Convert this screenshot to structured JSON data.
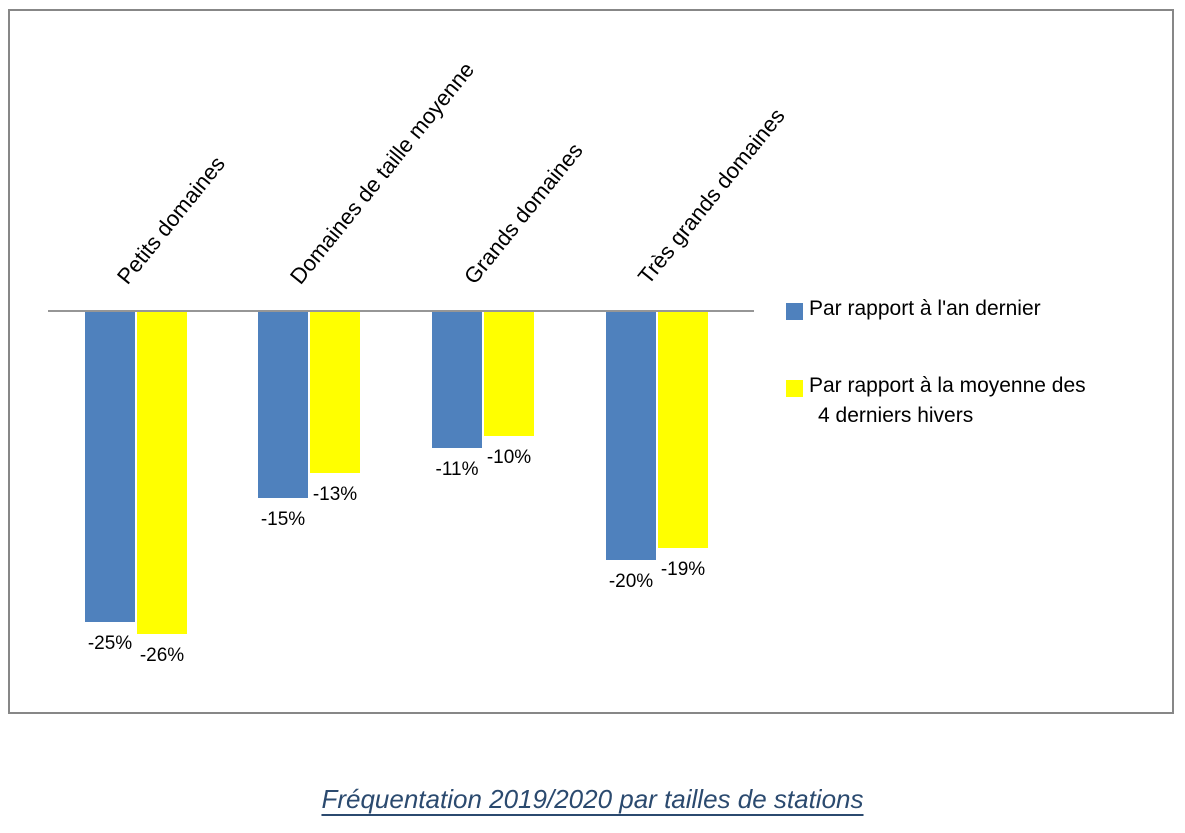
{
  "chart_data": {
    "type": "bar",
    "orientation": "vertical",
    "categories": [
      "Petits domaines",
      "Domaines de taille moyenne",
      "Grands domaines",
      "Très grands domaines"
    ],
    "series": [
      {
        "name": "Par rapport à l'an dernier",
        "color": "#4F81BD",
        "values": [
          -25,
          -15,
          -11,
          -20
        ],
        "labels": [
          "-25%",
          "-15%",
          "-11%",
          "-20%"
        ]
      },
      {
        "name": "Par rapport à la moyenne des 4 derniers hivers",
        "color": "#FFFF00",
        "values": [
          -26,
          -13,
          -10,
          -19
        ],
        "labels": [
          "-26%",
          "-13%",
          "-10%",
          "-19%"
        ]
      }
    ],
    "ylim": [
      -30,
      0
    ],
    "grid": false,
    "legend_position": "right",
    "data_label_position": "outside-end",
    "category_label_rotation_deg": 51
  },
  "legend": {
    "items": [
      {
        "color": "#4F81BD",
        "lines": [
          "Par rapport à l'an dernier"
        ]
      },
      {
        "color": "#FFFF00",
        "lines": [
          "Par rapport à la moyenne des",
          "4 derniers hivers"
        ]
      }
    ]
  },
  "caption": {
    "text": "Fréquentation 2019/2020 par tailles de stations",
    "color": "#2B4A6F"
  },
  "colors": {
    "bar_blue": "#4F81BD",
    "bar_yellow": "#FFFF00",
    "axis_line": "#969696",
    "frame_border": "#878787"
  }
}
